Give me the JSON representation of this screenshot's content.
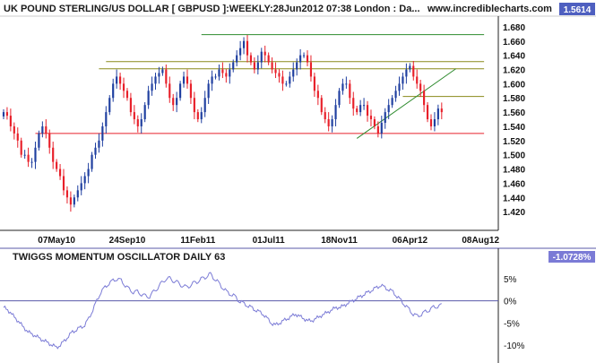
{
  "colors": {
    "up_candle": "#1f3fa0",
    "down_candle": "#e8202a",
    "support_line": "#e8202a",
    "green_line": "#2e8b2e",
    "olive_line": "#8a8a1a",
    "oscillator": "#7b7bd6",
    "badge": "#4e5fc0",
    "badge_osc": "#7b7bd6",
    "divider": "#5a5aaa",
    "axis": "#222222"
  },
  "chart_data": [
    {
      "type": "candlestick",
      "title": "UK POUND STERLING/US DOLLAR [ GBPUSD ]:WEEKLY:28Jun2012 07:38 London : Da...",
      "site": "www.incrediblecharts.com",
      "last_value": "1.5614",
      "x_tick_labels": [
        "07May10",
        "24Sep10",
        "11Feb11",
        "01Jul11",
        "18Nov11",
        "06Apr12",
        "08Aug12"
      ],
      "x_tick_weeks": [
        0,
        20,
        40,
        60,
        80,
        100,
        120
      ],
      "y_tick_labels": [
        "1.420",
        "1.440",
        "1.460",
        "1.480",
        "1.500",
        "1.520",
        "1.540",
        "1.560",
        "1.580",
        "1.600",
        "1.620",
        "1.640",
        "1.660",
        "1.680"
      ],
      "ylim": [
        1.4,
        1.69
      ],
      "week_range": [
        -15,
        123
      ],
      "close_series": [
        1.56,
        1.555,
        1.54,
        1.53,
        1.52,
        1.5,
        1.5,
        1.49,
        1.49,
        1.51,
        1.53,
        1.54,
        1.53,
        1.51,
        1.49,
        1.48,
        1.47,
        1.45,
        1.44,
        1.43,
        1.44,
        1.45,
        1.46,
        1.47,
        1.48,
        1.5,
        1.51,
        1.52,
        1.54,
        1.56,
        1.58,
        1.6,
        1.61,
        1.6,
        1.59,
        1.58,
        1.56,
        1.55,
        1.54,
        1.55,
        1.57,
        1.59,
        1.6,
        1.61,
        1.615,
        1.62,
        1.6,
        1.58,
        1.57,
        1.58,
        1.6,
        1.61,
        1.6,
        1.58,
        1.56,
        1.55,
        1.56,
        1.58,
        1.6,
        1.61,
        1.61,
        1.62,
        1.615,
        1.61,
        1.62,
        1.63,
        1.64,
        1.65,
        1.66,
        1.64,
        1.63,
        1.62,
        1.63,
        1.645,
        1.64,
        1.63,
        1.62,
        1.615,
        1.61,
        1.6,
        1.6,
        1.61,
        1.62,
        1.63,
        1.64,
        1.64,
        1.63,
        1.61,
        1.59,
        1.58,
        1.56,
        1.55,
        1.54,
        1.55,
        1.57,
        1.59,
        1.6,
        1.6,
        1.58,
        1.565,
        1.56,
        1.57,
        1.57,
        1.555,
        1.55,
        1.54,
        1.53,
        1.545,
        1.56,
        1.57,
        1.58,
        1.59,
        1.6,
        1.61,
        1.62,
        1.625,
        1.61,
        1.6,
        1.59,
        1.57,
        1.55,
        1.54,
        1.55,
        1.565,
        1.56
      ],
      "trend_lines": [
        {
          "label": "support",
          "from": [
            -6,
            1.53
          ],
          "to": [
            121,
            1.53
          ],
          "color": "support_line"
        },
        {
          "label": "resistance",
          "from": [
            41,
            1.669
          ],
          "to": [
            121,
            1.669
          ],
          "color": "green_line"
        },
        {
          "label": "upper band",
          "from": [
            14,
            1.631
          ],
          "to": [
            121,
            1.631
          ],
          "color": "olive_line"
        },
        {
          "label": "middle band",
          "from": [
            12,
            1.621
          ],
          "to": [
            121,
            1.621
          ],
          "color": "olive_line"
        },
        {
          "label": "lower band",
          "from": [
            98,
            1.582
          ],
          "to": [
            121,
            1.582
          ],
          "color": "olive_line"
        },
        {
          "label": "rising trendline",
          "from": [
            85,
            1.523
          ],
          "to": [
            113,
            1.621
          ],
          "color": "green_line"
        }
      ]
    },
    {
      "type": "line",
      "title": "TWIGGS MOMENTUM OSCILLATOR DAILY 63",
      "last_value": "-1.0728%",
      "y_tick_labels": [
        "5%",
        "0%",
        "-5%",
        "-10%"
      ],
      "y_tick_values": [
        5,
        0,
        -5,
        -10
      ],
      "ylim": [
        -12,
        8
      ],
      "zero_line": true,
      "values_weekly": [
        -1.5,
        -2,
        -3,
        -4,
        -5,
        -6,
        -7,
        -7.5,
        -8,
        -8.5,
        -9,
        -9.5,
        -10,
        -10.5,
        -10,
        -9,
        -8,
        -7,
        -6.5,
        -6,
        -5.5,
        -4,
        -2,
        0,
        2,
        3,
        4,
        4.5,
        5,
        4.5,
        3.5,
        2.5,
        2,
        2,
        1.5,
        1,
        1,
        2,
        3,
        4,
        5,
        5,
        4.5,
        4,
        3.5,
        3,
        3.5,
        4,
        4.5,
        5,
        5.5,
        6,
        5,
        4,
        3,
        2,
        1.5,
        1,
        0,
        -0.5,
        -1,
        -1.5,
        -2,
        -2.5,
        -3,
        -4,
        -5,
        -5.5,
        -5,
        -4.5,
        -4,
        -3.5,
        -3,
        -3.5,
        -4,
        -4.5,
        -4.5,
        -4,
        -3.5,
        -3,
        -2.5,
        -2,
        -1.5,
        -1.5,
        -1,
        -0.5,
        0,
        0.5,
        1,
        1.5,
        2,
        2.5,
        3,
        3.5,
        3,
        2.5,
        2,
        1,
        0,
        -1,
        -2,
        -3,
        -3.5,
        -3,
        -2.5,
        -2,
        -1.5,
        -1.2,
        -1.0728
      ]
    }
  ]
}
